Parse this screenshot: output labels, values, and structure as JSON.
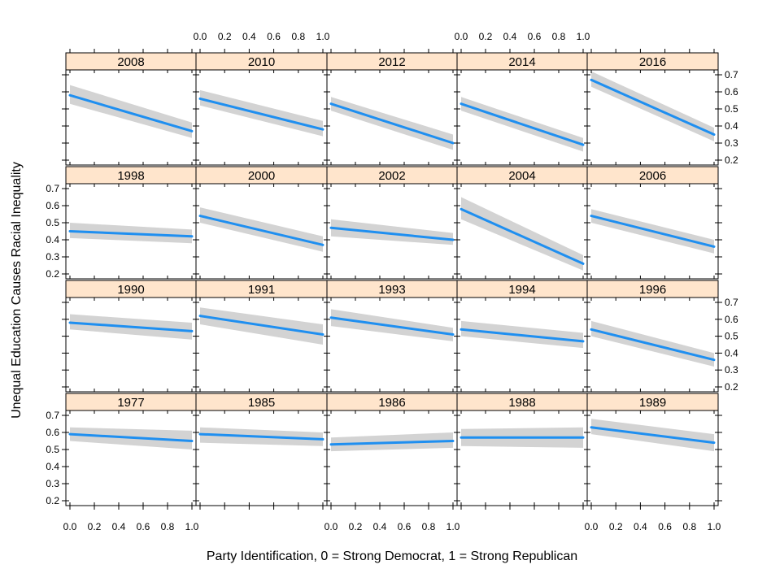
{
  "chart_data": {
    "type": "line",
    "layout": "lattice-5x4",
    "xlabel": "Party Identification, 0 = Strong Democrat, 1 = Strong Republican",
    "ylabel": "Unequal Education Causes Racial Inequality",
    "xlim": [
      0,
      1
    ],
    "ylim": [
      0.2,
      0.7
    ],
    "x_ticks": [
      "0.0",
      "0.2",
      "0.4",
      "0.6",
      "0.8",
      "1.0"
    ],
    "y_ticks": [
      "0.2",
      "0.3",
      "0.4",
      "0.5",
      "0.6",
      "0.7"
    ],
    "colors": {
      "line": "#1f8ff0",
      "band": "#d3d3d3",
      "strip": "#ffe5cc"
    },
    "panels": [
      {
        "year": "2008",
        "y0": 0.58,
        "y1": 0.37,
        "lo0": 0.53,
        "hi0": 0.64,
        "lo1": 0.33,
        "hi1": 0.42
      },
      {
        "year": "2010",
        "y0": 0.56,
        "y1": 0.38,
        "lo0": 0.52,
        "hi0": 0.61,
        "lo1": 0.34,
        "hi1": 0.43
      },
      {
        "year": "2012",
        "y0": 0.53,
        "y1": 0.3,
        "lo0": 0.49,
        "hi0": 0.57,
        "lo1": 0.26,
        "hi1": 0.35
      },
      {
        "year": "2014",
        "y0": 0.53,
        "y1": 0.29,
        "lo0": 0.49,
        "hi0": 0.57,
        "lo1": 0.25,
        "hi1": 0.33
      },
      {
        "year": "2016",
        "y0": 0.67,
        "y1": 0.35,
        "lo0": 0.63,
        "hi0": 0.72,
        "lo1": 0.31,
        "hi1": 0.39
      },
      {
        "year": "1998",
        "y0": 0.45,
        "y1": 0.42,
        "lo0": 0.41,
        "hi0": 0.5,
        "lo1": 0.38,
        "hi1": 0.46
      },
      {
        "year": "2000",
        "y0": 0.54,
        "y1": 0.37,
        "lo0": 0.5,
        "hi0": 0.59,
        "lo1": 0.33,
        "hi1": 0.42
      },
      {
        "year": "2002",
        "y0": 0.47,
        "y1": 0.4,
        "lo0": 0.42,
        "hi0": 0.52,
        "lo1": 0.37,
        "hi1": 0.44
      },
      {
        "year": "2004",
        "y0": 0.58,
        "y1": 0.26,
        "lo0": 0.52,
        "hi0": 0.65,
        "lo1": 0.22,
        "hi1": 0.31
      },
      {
        "year": "2006",
        "y0": 0.54,
        "y1": 0.36,
        "lo0": 0.5,
        "hi0": 0.58,
        "lo1": 0.32,
        "hi1": 0.4
      },
      {
        "year": "1990",
        "y0": 0.58,
        "y1": 0.53,
        "lo0": 0.54,
        "hi0": 0.63,
        "lo1": 0.48,
        "hi1": 0.58
      },
      {
        "year": "1991",
        "y0": 0.62,
        "y1": 0.51,
        "lo0": 0.57,
        "hi0": 0.67,
        "lo1": 0.45,
        "hi1": 0.57
      },
      {
        "year": "1993",
        "y0": 0.61,
        "y1": 0.51,
        "lo0": 0.56,
        "hi0": 0.66,
        "lo1": 0.47,
        "hi1": 0.55
      },
      {
        "year": "1994",
        "y0": 0.54,
        "y1": 0.47,
        "lo0": 0.5,
        "hi0": 0.59,
        "lo1": 0.43,
        "hi1": 0.52
      },
      {
        "year": "1996",
        "y0": 0.54,
        "y1": 0.36,
        "lo0": 0.5,
        "hi0": 0.59,
        "lo1": 0.32,
        "hi1": 0.4
      },
      {
        "year": "1977",
        "y0": 0.59,
        "y1": 0.55,
        "lo0": 0.55,
        "hi0": 0.63,
        "lo1": 0.5,
        "hi1": 0.61
      },
      {
        "year": "1985",
        "y0": 0.59,
        "y1": 0.56,
        "lo0": 0.54,
        "hi0": 0.63,
        "lo1": 0.52,
        "hi1": 0.6
      },
      {
        "year": "1986",
        "y0": 0.53,
        "y1": 0.55,
        "lo0": 0.49,
        "hi0": 0.57,
        "lo1": 0.51,
        "hi1": 0.6
      },
      {
        "year": "1988",
        "y0": 0.57,
        "y1": 0.57,
        "lo0": 0.52,
        "hi0": 0.62,
        "lo1": 0.51,
        "hi1": 0.63
      },
      {
        "year": "1989",
        "y0": 0.63,
        "y1": 0.54,
        "lo0": 0.59,
        "hi0": 0.68,
        "lo1": 0.49,
        "hi1": 0.59
      }
    ]
  }
}
